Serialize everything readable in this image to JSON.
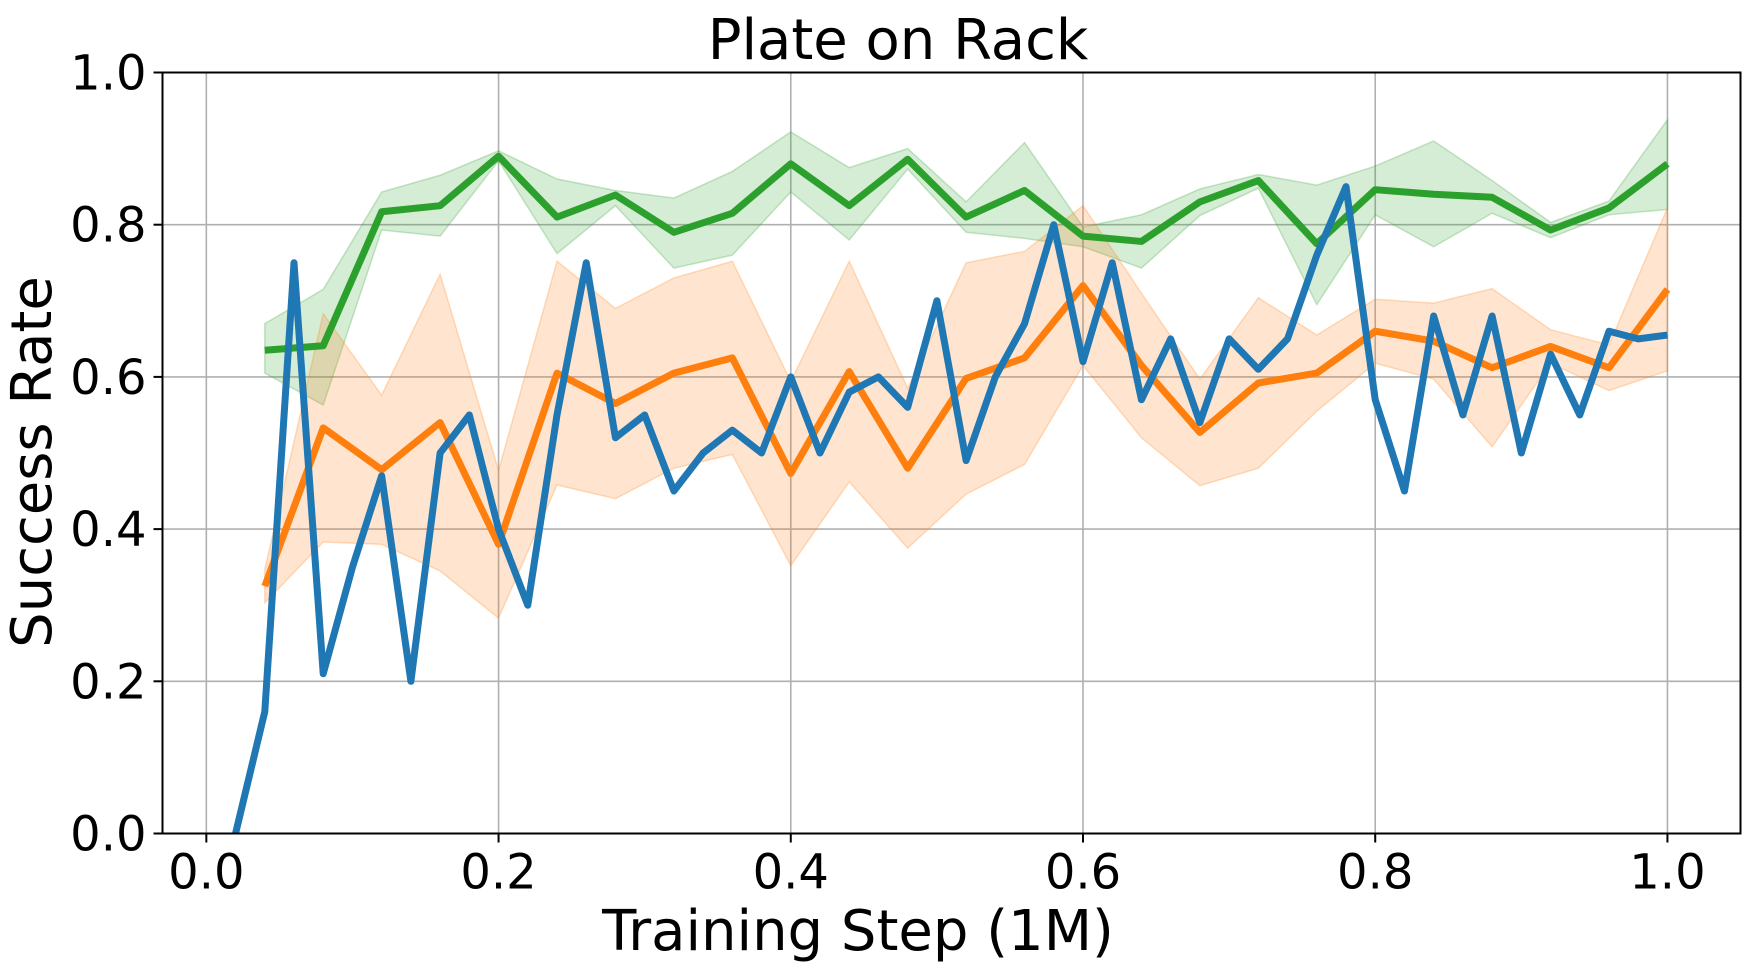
{
  "chart_data": {
    "type": "line",
    "title": "Plate on Rack",
    "xlabel": "Training Step (1M)",
    "ylabel": "Success Rate",
    "xlim": [
      -0.03,
      1.05
    ],
    "ylim": [
      0.0,
      1.0
    ],
    "xticks": [
      0.0,
      0.2,
      0.4,
      0.6,
      0.8,
      1.0
    ],
    "xtick_labels": [
      "0.0",
      "0.2",
      "0.4",
      "0.6",
      "0.8",
      "1.0"
    ],
    "yticks": [
      0.0,
      0.2,
      0.4,
      0.6,
      0.8,
      1.0
    ],
    "ytick_labels": [
      "0.0",
      "0.2",
      "0.4",
      "0.6",
      "0.8",
      "1.0"
    ],
    "grid": true,
    "legend": "none",
    "series": [
      {
        "color": "#2ca02c",
        "x": [
          0.04,
          0.08,
          0.12,
          0.16,
          0.2,
          0.24,
          0.28,
          0.32,
          0.36,
          0.4,
          0.44,
          0.48,
          0.52,
          0.56,
          0.6,
          0.64,
          0.68,
          0.72,
          0.76,
          0.8,
          0.84,
          0.88,
          0.92,
          0.96,
          1.0
        ],
        "y": [
          0.635,
          0.641,
          0.817,
          0.825,
          0.89,
          0.81,
          0.839,
          0.79,
          0.815,
          0.88,
          0.825,
          0.886,
          0.81,
          0.845,
          0.785,
          0.778,
          0.83,
          0.858,
          0.775,
          0.846,
          0.84,
          0.836,
          0.793,
          0.822,
          0.88
        ],
        "lower": [
          0.605,
          0.563,
          0.793,
          0.785,
          0.884,
          0.762,
          0.825,
          0.743,
          0.76,
          0.843,
          0.78,
          0.873,
          0.79,
          0.782,
          0.771,
          0.743,
          0.812,
          0.848,
          0.695,
          0.813,
          0.771,
          0.815,
          0.783,
          0.813,
          0.82
        ],
        "upper": [
          0.67,
          0.715,
          0.843,
          0.865,
          0.897,
          0.86,
          0.845,
          0.835,
          0.87,
          0.922,
          0.875,
          0.9,
          0.83,
          0.908,
          0.797,
          0.813,
          0.847,
          0.866,
          0.852,
          0.877,
          0.91,
          0.858,
          0.803,
          0.831,
          0.938
        ]
      },
      {
        "color": "#ff7f0e",
        "x": [
          0.04,
          0.08,
          0.12,
          0.16,
          0.2,
          0.24,
          0.28,
          0.32,
          0.36,
          0.4,
          0.44,
          0.48,
          0.52,
          0.56,
          0.6,
          0.64,
          0.68,
          0.72,
          0.76,
          0.8,
          0.84,
          0.88,
          0.92,
          0.96,
          1.0
        ],
        "y": [
          0.325,
          0.533,
          0.478,
          0.54,
          0.38,
          0.605,
          0.565,
          0.605,
          0.625,
          0.473,
          0.607,
          0.48,
          0.598,
          0.625,
          0.72,
          0.615,
          0.527,
          0.592,
          0.605,
          0.66,
          0.647,
          0.612,
          0.64,
          0.612,
          0.715
        ],
        "lower": [
          0.303,
          0.383,
          0.38,
          0.345,
          0.283,
          0.458,
          0.44,
          0.48,
          0.498,
          0.352,
          0.462,
          0.375,
          0.446,
          0.485,
          0.615,
          0.52,
          0.457,
          0.48,
          0.555,
          0.618,
          0.597,
          0.508,
          0.618,
          0.582,
          0.608
        ]
      },
      {
        "color": "#1f77b4",
        "x": [
          0.02,
          0.04,
          0.06,
          0.08,
          0.1,
          0.12,
          0.14,
          0.16,
          0.18,
          0.2,
          0.22,
          0.24,
          0.26,
          0.28,
          0.3,
          0.32,
          0.34,
          0.36,
          0.38,
          0.4,
          0.42,
          0.44,
          0.46,
          0.48,
          0.5,
          0.52,
          0.54,
          0.56,
          0.58,
          0.6,
          0.62,
          0.64,
          0.66,
          0.68,
          0.7,
          0.72,
          0.74,
          0.76,
          0.78,
          0.8,
          0.82,
          0.84,
          0.86,
          0.88,
          0.9,
          0.92,
          0.94,
          0.96,
          0.98,
          1.0
        ],
        "y": [
          0.0,
          0.16,
          0.75,
          0.21,
          0.35,
          0.47,
          0.2,
          0.5,
          0.55,
          0.4,
          0.3,
          0.55,
          0.75,
          0.52,
          0.55,
          0.45,
          0.5,
          0.53,
          0.5,
          0.6,
          0.5,
          0.58,
          0.6,
          0.56,
          0.7,
          0.49,
          0.6,
          0.67,
          0.8,
          0.62,
          0.75,
          0.57,
          0.65,
          0.54,
          0.65,
          0.61,
          0.65,
          0.76,
          0.85,
          0.57,
          0.45,
          0.68,
          0.55,
          0.68,
          0.5,
          0.63,
          0.55,
          0.66,
          0.65,
          0.655
        ]
      }
    ]
  }
}
